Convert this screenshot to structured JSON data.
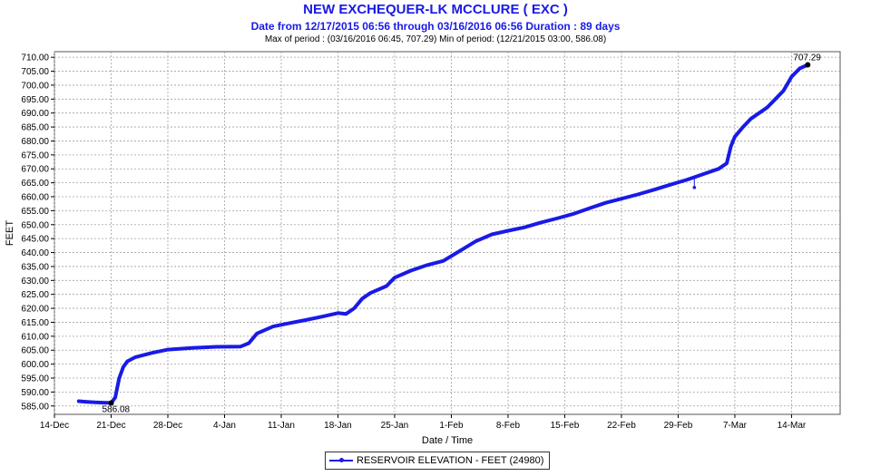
{
  "header": {
    "title": "NEW EXCHEQUER-LK MCCLURE ( EXC )",
    "subtitle": "Date from 12/17/2015 06:56 through 03/16/2016 06:56 Duration : 89 days",
    "stats": "Max of period : (03/16/2016 06:45, 707.29)  Min of period: (12/21/2015 03:00,  586.08)"
  },
  "colors": {
    "series": "#1a1ae6",
    "grid": "#a0a0a0",
    "title": "#1a1ae6"
  },
  "legend": {
    "label": "RESERVOIR ELEVATION - FEET (24980)"
  },
  "chart_data": {
    "type": "line",
    "title": "NEW EXCHEQUER-LK MCCLURE ( EXC )",
    "xlabel": "Date / Time",
    "ylabel": "FEET",
    "xlim": [
      "2015-12-14",
      "2016-03-20"
    ],
    "ylim": [
      582,
      712
    ],
    "grid": true,
    "legend_position": "bottom-center",
    "x_ticks": [
      "14-Dec",
      "21-Dec",
      "28-Dec",
      "4-Jan",
      "11-Jan",
      "18-Jan",
      "25-Jan",
      "1-Feb",
      "8-Feb",
      "15-Feb",
      "22-Feb",
      "29-Feb",
      "7-Mar",
      "14-Mar"
    ],
    "y_ticks": [
      "585.00",
      "590.00",
      "595.00",
      "600.00",
      "605.00",
      "610.00",
      "615.00",
      "620.00",
      "625.00",
      "630.00",
      "635.00",
      "640.00",
      "645.00",
      "650.00",
      "655.00",
      "660.00",
      "665.00",
      "670.00",
      "675.00",
      "680.00",
      "685.00",
      "690.00",
      "695.00",
      "700.00",
      "705.00",
      "710.00"
    ],
    "series": [
      {
        "name": "RESERVOIR ELEVATION - FEET (24980)",
        "x": [
          "2015-12-17",
          "2015-12-18",
          "2015-12-19",
          "2015-12-20",
          "2015-12-21",
          "2015-12-21T12:00",
          "2015-12-22",
          "2015-12-22T12:00",
          "2015-12-23",
          "2015-12-24",
          "2015-12-26",
          "2015-12-28",
          "2015-12-31",
          "2016-01-03",
          "2016-01-06",
          "2016-01-07",
          "2016-01-08",
          "2016-01-10",
          "2016-01-12",
          "2016-01-14",
          "2016-01-16",
          "2016-01-18",
          "2016-01-19",
          "2016-01-20",
          "2016-01-21",
          "2016-01-22",
          "2016-01-24",
          "2016-01-25",
          "2016-01-27",
          "2016-01-29",
          "2016-01-31",
          "2016-02-02",
          "2016-02-04",
          "2016-02-06",
          "2016-02-08",
          "2016-02-10",
          "2016-02-12",
          "2016-02-14",
          "2016-02-16",
          "2016-02-18",
          "2016-02-20",
          "2016-02-22",
          "2016-02-24",
          "2016-02-26",
          "2016-02-28",
          "2016-03-01",
          "2016-03-03",
          "2016-03-05",
          "2016-03-06",
          "2016-03-06T12:00",
          "2016-03-07",
          "2016-03-08",
          "2016-03-09",
          "2016-03-10",
          "2016-03-11",
          "2016-03-12",
          "2016-03-13",
          "2016-03-14",
          "2016-03-15",
          "2016-03-16"
        ],
        "y": [
          586.7,
          586.5,
          586.3,
          586.2,
          586.08,
          588.0,
          595.0,
          599.0,
          601.0,
          602.5,
          604.0,
          605.2,
          605.8,
          606.2,
          606.3,
          607.5,
          611.0,
          613.5,
          614.7,
          615.8,
          617.0,
          618.3,
          618.0,
          620.0,
          623.5,
          625.5,
          628.0,
          631.0,
          633.5,
          635.5,
          637.0,
          640.5,
          644.0,
          646.5,
          647.8,
          649.0,
          650.7,
          652.2,
          653.8,
          655.8,
          657.8,
          659.3,
          660.8,
          662.5,
          664.3,
          666.0,
          668.0,
          670.0,
          672.0,
          678.0,
          681.5,
          685.0,
          688.0,
          690.0,
          692.0,
          695.0,
          698.0,
          703.0,
          706.0,
          707.29
        ]
      }
    ],
    "annotations": [
      {
        "x": "2015-12-21",
        "y": 586.08,
        "text": "586.08"
      },
      {
        "x": "2016-03-16",
        "y": 707.29,
        "text": "707.29"
      }
    ],
    "spike": {
      "x": "2016-03-02",
      "y_from": 667.0,
      "y_to": 663.3
    }
  }
}
